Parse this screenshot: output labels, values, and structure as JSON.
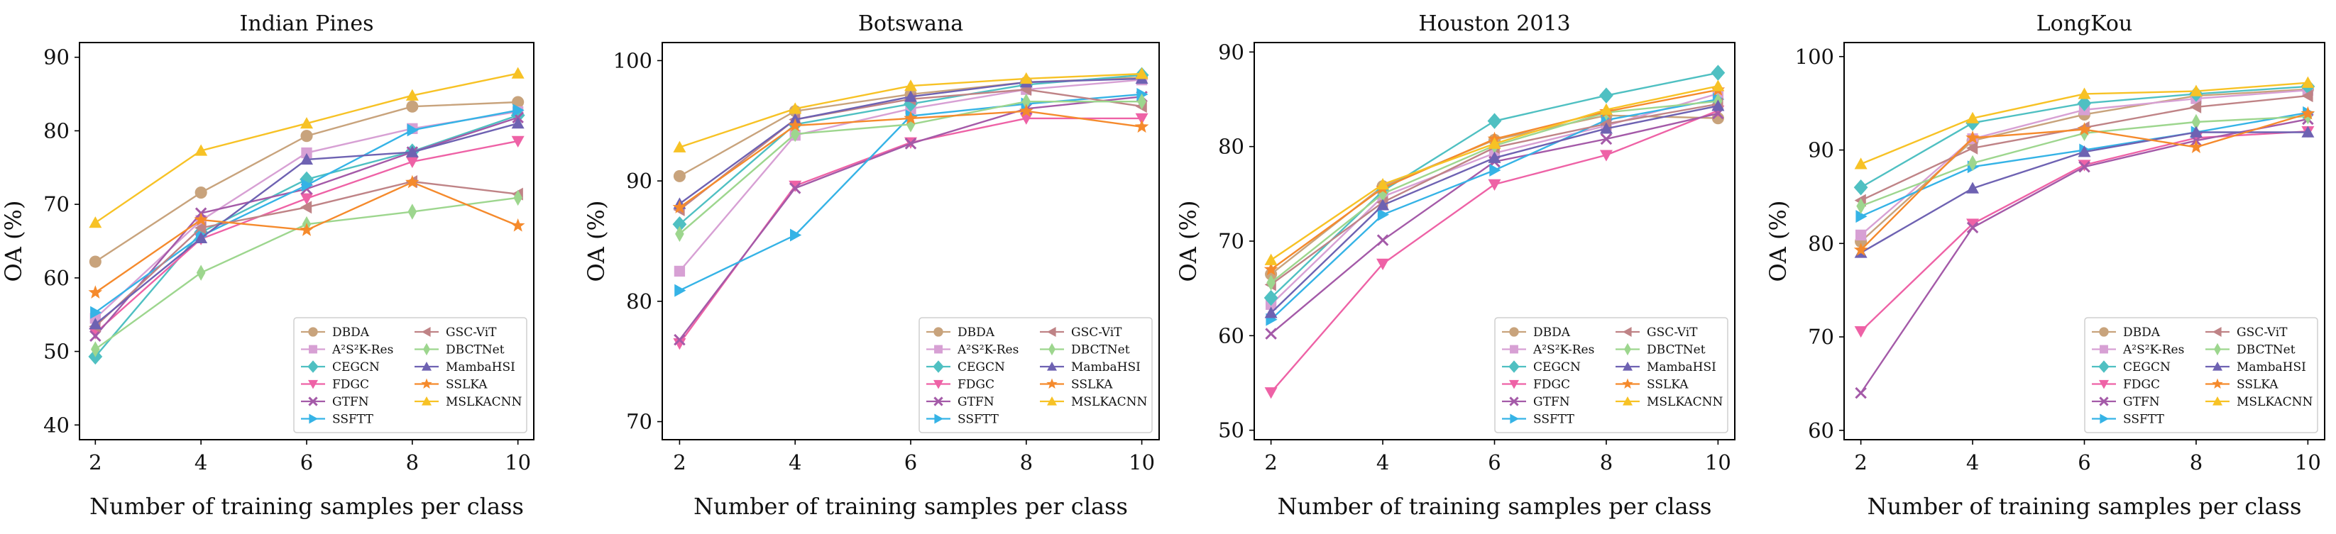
{
  "figure": {
    "x_label": "Number of training samples per class",
    "y_label": "OA (%)"
  },
  "methods": [
    {
      "name": "DBDA",
      "color": "#c8a37c",
      "marker": "circle"
    },
    {
      "name": "A²S²K-Res",
      "color": "#d7a0d4",
      "marker": "square"
    },
    {
      "name": "CEGCN",
      "color": "#4fc0c2",
      "marker": "diamond"
    },
    {
      "name": "FDGC",
      "color": "#ee62a6",
      "marker": "triangle-down"
    },
    {
      "name": "GTFN",
      "color": "#a45aa8",
      "marker": "x"
    },
    {
      "name": "SSFTT",
      "color": "#35b3e6",
      "marker": "triangle-right"
    },
    {
      "name": "GSC-ViT",
      "color": "#bf8386",
      "marker": "triangle-left"
    },
    {
      "name": "DBCTNet",
      "color": "#9dd68e",
      "marker": "thin-diamond"
    },
    {
      "name": "MambaHSI",
      "color": "#6e62b2",
      "marker": "triangle-up"
    },
    {
      "name": "SSLKA",
      "color": "#f58a2c",
      "marker": "star"
    },
    {
      "name": "MSLKACNN",
      "color": "#f7c225",
      "marker": "triangle-up"
    }
  ],
  "chart_data": [
    {
      "type": "line",
      "title": "Indian Pines",
      "xlabel": "Number of training samples per class",
      "ylabel": "OA (%)",
      "x": [
        2,
        4,
        6,
        8,
        10
      ],
      "xlim": [
        1.7,
        10.3
      ],
      "ylim": [
        38,
        92
      ],
      "yticks": [
        40,
        50,
        60,
        70,
        80,
        90
      ],
      "series": [
        {
          "name": "DBDA",
          "values": [
            62.2,
            71.6,
            79.3,
            83.3,
            83.9
          ]
        },
        {
          "name": "A²S²K-Res",
          "values": [
            54.5,
            67.8,
            77.0,
            80.3,
            82.6
          ]
        },
        {
          "name": "CEGCN",
          "values": [
            49.3,
            66.2,
            73.4,
            77.2,
            82.1
          ]
        },
        {
          "name": "FDGC",
          "values": [
            52.5,
            65.3,
            70.8,
            75.8,
            78.6
          ]
        },
        {
          "name": "GTFN",
          "values": [
            52.1,
            68.8,
            72.1,
            77.1,
            81.8
          ]
        },
        {
          "name": "SSFTT",
          "values": [
            55.3,
            65.7,
            72.6,
            80.1,
            82.8
          ]
        },
        {
          "name": "GSC-ViT",
          "values": [
            53.4,
            66.8,
            69.6,
            73.1,
            71.4
          ]
        },
        {
          "name": "DBCTNet",
          "values": [
            50.3,
            60.7,
            67.3,
            69.0,
            70.9
          ]
        },
        {
          "name": "MambaHSI",
          "values": [
            53.7,
            65.4,
            76.1,
            77.1,
            81.0
          ]
        },
        {
          "name": "SSLKA",
          "values": [
            58.0,
            67.9,
            66.5,
            73.0,
            67.1
          ]
        },
        {
          "name": "MSLKACNN",
          "values": [
            67.5,
            77.3,
            81.0,
            84.8,
            87.8
          ]
        }
      ],
      "legend": "lower-right"
    },
    {
      "type": "line",
      "title": "Botswana",
      "xlabel": "Number of training samples per class",
      "ylabel": "OA (%)",
      "x": [
        2,
        4,
        6,
        8,
        10
      ],
      "xlim": [
        1.7,
        10.3
      ],
      "ylim": [
        68.5,
        101.5
      ],
      "yticks": [
        70,
        80,
        90,
        100
      ],
      "series": [
        {
          "name": "DBDA",
          "values": [
            90.4,
            95.8,
            97.2,
            98.2,
            98.6
          ]
        },
        {
          "name": "A²S²K-Res",
          "values": [
            82.5,
            93.8,
            96.0,
            97.6,
            98.4
          ]
        },
        {
          "name": "CEGCN",
          "values": [
            86.4,
            94.7,
            96.4,
            98.0,
            98.8
          ]
        },
        {
          "name": "FDGC",
          "values": [
            76.5,
            89.6,
            93.2,
            95.2,
            95.2
          ]
        },
        {
          "name": "GTFN",
          "values": [
            76.8,
            89.4,
            93.1,
            96.0,
            97.0
          ]
        },
        {
          "name": "SSFTT",
          "values": [
            80.9,
            85.5,
            95.4,
            96.4,
            97.2
          ]
        },
        {
          "name": "GSC-ViT",
          "values": [
            87.6,
            95.1,
            96.8,
            97.6,
            96.2
          ]
        },
        {
          "name": "DBCTNet",
          "values": [
            85.6,
            93.9,
            94.7,
            96.6,
            96.6
          ]
        },
        {
          "name": "MambaHSI",
          "values": [
            88.1,
            95.1,
            97.0,
            98.2,
            98.5
          ]
        },
        {
          "name": "SSLKA",
          "values": [
            87.8,
            94.6,
            95.2,
            95.8,
            94.5
          ]
        },
        {
          "name": "MSLKACNN",
          "values": [
            92.8,
            96.0,
            97.9,
            98.5,
            98.9
          ]
        }
      ],
      "legend": "lower-right"
    },
    {
      "type": "line",
      "title": "Houston 2013",
      "xlabel": "Number of training samples per class",
      "ylabel": "OA (%)",
      "x": [
        2,
        4,
        6,
        8,
        10
      ],
      "xlim": [
        1.7,
        10.3
      ],
      "ylim": [
        49,
        91
      ],
      "yticks": [
        50,
        60,
        70,
        80,
        90
      ],
      "series": [
        {
          "name": "DBDA",
          "values": [
            66.5,
            75.8,
            80.7,
            83.3,
            83.0
          ]
        },
        {
          "name": "A²S²K-Res",
          "values": [
            63.3,
            74.7,
            79.3,
            82.2,
            85.6
          ]
        },
        {
          "name": "CEGCN",
          "values": [
            64.0,
            75.3,
            82.7,
            85.4,
            87.8
          ]
        },
        {
          "name": "FDGC",
          "values": [
            54.0,
            67.6,
            76.0,
            79.1,
            83.8
          ]
        },
        {
          "name": "GTFN",
          "values": [
            60.2,
            70.1,
            78.4,
            80.8,
            83.5
          ]
        },
        {
          "name": "SSFTT",
          "values": [
            61.7,
            72.8,
            77.5,
            82.8,
            85.0
          ]
        },
        {
          "name": "GSC-ViT",
          "values": [
            65.4,
            74.1,
            79.9,
            82.4,
            84.5
          ]
        },
        {
          "name": "DBCTNet",
          "values": [
            65.6,
            75.0,
            80.1,
            83.6,
            84.8
          ]
        },
        {
          "name": "MambaHSI",
          "values": [
            62.4,
            73.8,
            78.8,
            81.9,
            84.3
          ]
        },
        {
          "name": "SSLKA",
          "values": [
            67.0,
            75.6,
            80.8,
            83.7,
            86.0
          ]
        },
        {
          "name": "MSLKACNN",
          "values": [
            68.0,
            76.0,
            80.3,
            83.9,
            86.4
          ]
        }
      ],
      "legend": "lower-right"
    },
    {
      "type": "line",
      "title": "LongKou",
      "xlabel": "Number of training samples per class",
      "ylabel": "OA (%)",
      "x": [
        2,
        4,
        6,
        8,
        10
      ],
      "xlim": [
        1.7,
        10.3
      ],
      "ylim": [
        59,
        101.5
      ],
      "yticks": [
        60,
        70,
        80,
        90,
        100
      ],
      "series": [
        {
          "name": "DBDA",
          "values": [
            80.2,
            91.0,
            93.8,
            95.8,
            96.5
          ]
        },
        {
          "name": "A²S²K-Res",
          "values": [
            80.9,
            91.2,
            94.3,
            95.5,
            96.4
          ]
        },
        {
          "name": "CEGCN",
          "values": [
            86.0,
            92.9,
            95.0,
            96.0,
            96.8
          ]
        },
        {
          "name": "FDGC",
          "values": [
            70.6,
            82.1,
            88.4,
            91.3,
            92.0
          ]
        },
        {
          "name": "GTFN",
          "values": [
            64.0,
            81.7,
            88.2,
            91.0,
            93.3
          ]
        },
        {
          "name": "SSFTT",
          "values": [
            82.9,
            88.2,
            90.0,
            91.9,
            94.0
          ]
        },
        {
          "name": "GSC-ViT",
          "values": [
            84.6,
            90.2,
            92.4,
            94.6,
            95.8
          ]
        },
        {
          "name": "DBCTNet",
          "values": [
            84.0,
            88.6,
            91.8,
            93.0,
            93.6
          ]
        },
        {
          "name": "MambaHSI",
          "values": [
            79.0,
            85.9,
            89.8,
            91.9,
            91.9
          ]
        },
        {
          "name": "SSLKA",
          "values": [
            79.3,
            91.3,
            92.2,
            90.3,
            93.9
          ]
        },
        {
          "name": "MSLKACNN",
          "values": [
            88.5,
            93.4,
            96.0,
            96.3,
            97.2
          ]
        }
      ],
      "legend": "lower-right"
    }
  ]
}
